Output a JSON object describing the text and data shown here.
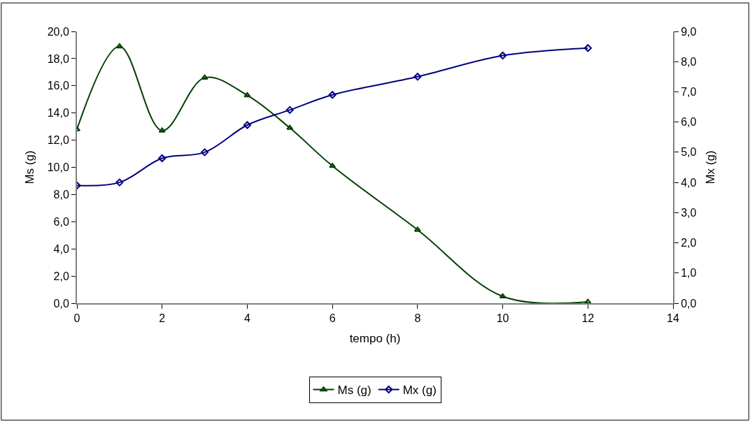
{
  "chart_data": {
    "type": "line",
    "xlabel": "tempo (h)",
    "ylabel": "Ms (g)",
    "y2label": "Mx (g)",
    "x": [
      0,
      1,
      2,
      3,
      4,
      5,
      6,
      8,
      10,
      12
    ],
    "series": [
      {
        "name": "Ms (g)",
        "color": "#004000",
        "marker": "triangle",
        "values": [
          12.8,
          18.9,
          12.7,
          16.6,
          15.3,
          12.9,
          10.1,
          5.4,
          0.5,
          0.1
        ]
      },
      {
        "name": "Mx (g)",
        "color": "#000080",
        "marker": "diamond",
        "axis": "y2",
        "values": [
          3.9,
          4.0,
          4.8,
          5.0,
          5.9,
          6.4,
          6.9,
          7.5,
          8.2,
          8.45
        ]
      }
    ],
    "xlim": [
      0,
      14
    ],
    "xticks": [
      0,
      2,
      4,
      6,
      8,
      10,
      12,
      14
    ],
    "ylim": [
      0,
      20
    ],
    "yticks": [
      {
        "value": 0,
        "label": "0,0"
      },
      {
        "value": 2,
        "label": "2,0"
      },
      {
        "value": 4,
        "label": "4,0"
      },
      {
        "value": 6,
        "label": "6,0"
      },
      {
        "value": 8,
        "label": "8,0"
      },
      {
        "value": 10,
        "label": "10,0"
      },
      {
        "value": 12,
        "label": "12,0"
      },
      {
        "value": 14,
        "label": "14,0"
      },
      {
        "value": 16,
        "label": "16,0"
      },
      {
        "value": 18,
        "label": "18,0"
      },
      {
        "value": 20,
        "label": "20,0"
      }
    ],
    "y2lim": [
      0,
      9
    ],
    "y2ticks": [
      {
        "value": 0,
        "label": "0,0"
      },
      {
        "value": 1,
        "label": "1,0"
      },
      {
        "value": 2,
        "label": "2,0"
      },
      {
        "value": 3,
        "label": "3,0"
      },
      {
        "value": 4,
        "label": "4,0"
      },
      {
        "value": 5,
        "label": "5,0"
      },
      {
        "value": 6,
        "label": "6,0"
      },
      {
        "value": 7,
        "label": "7,0"
      },
      {
        "value": 8,
        "label": "8,0"
      },
      {
        "value": 9,
        "label": "9,0"
      }
    ],
    "legend": "bottom",
    "line_style": "solid"
  }
}
